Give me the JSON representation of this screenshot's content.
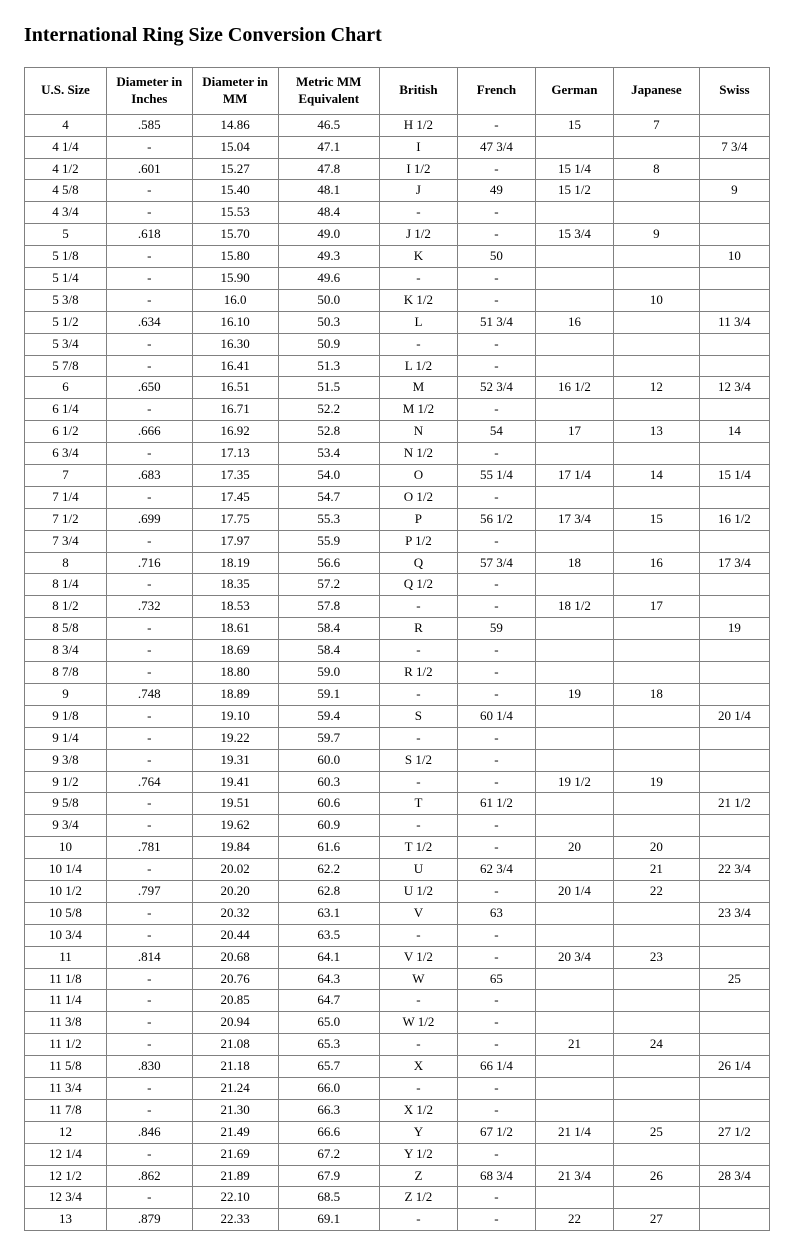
{
  "title": "International Ring Size Conversion Chart",
  "table": {
    "columns": [
      "U.S. Size",
      "Diameter in Inches",
      "Diameter in MM",
      "Metric MM Equivalent",
      "British",
      "French",
      "German",
      "Japanese",
      "Swiss"
    ],
    "rows": [
      [
        "4",
        ".585",
        "14.86",
        "46.5",
        "H 1/2",
        "-",
        "15",
        "7",
        ""
      ],
      [
        "4 1/4",
        "-",
        "15.04",
        "47.1",
        "I",
        "47 3/4",
        "",
        "",
        "7 3/4"
      ],
      [
        "4 1/2",
        ".601",
        "15.27",
        "47.8",
        "I 1/2",
        "-",
        "15 1/4",
        "8",
        ""
      ],
      [
        "4 5/8",
        "-",
        "15.40",
        "48.1",
        "J",
        "49",
        "15 1/2",
        "",
        "9"
      ],
      [
        "4 3/4",
        "-",
        "15.53",
        "48.4",
        "-",
        "-",
        "",
        "",
        ""
      ],
      [
        "5",
        ".618",
        "15.70",
        "49.0",
        "J 1/2",
        "-",
        "15 3/4",
        "9",
        ""
      ],
      [
        "5 1/8",
        "-",
        "15.80",
        "49.3",
        "K",
        "50",
        "",
        "",
        "10"
      ],
      [
        "5 1/4",
        "-",
        "15.90",
        "49.6",
        "-",
        "-",
        "",
        "",
        ""
      ],
      [
        "5 3/8",
        "-",
        "16.0",
        "50.0",
        "K 1/2",
        "-",
        "",
        "10",
        ""
      ],
      [
        "5 1/2",
        ".634",
        "16.10",
        "50.3",
        "L",
        "51 3/4",
        "16",
        "",
        "11 3/4"
      ],
      [
        "5 3/4",
        "-",
        "16.30",
        "50.9",
        "-",
        "-",
        "",
        "",
        ""
      ],
      [
        "5 7/8",
        "-",
        "16.41",
        "51.3",
        "L 1/2",
        "-",
        "",
        "",
        ""
      ],
      [
        "6",
        ".650",
        "16.51",
        "51.5",
        "M",
        "52 3/4",
        "16 1/2",
        "12",
        "12 3/4"
      ],
      [
        "6 1/4",
        "-",
        "16.71",
        "52.2",
        "M 1/2",
        "-",
        "",
        "",
        ""
      ],
      [
        "6 1/2",
        ".666",
        "16.92",
        "52.8",
        "N",
        "54",
        "17",
        "13",
        "14"
      ],
      [
        "6 3/4",
        "-",
        "17.13",
        "53.4",
        "N 1/2",
        "-",
        "",
        "",
        ""
      ],
      [
        "7",
        ".683",
        "17.35",
        "54.0",
        "O",
        "55 1/4",
        "17 1/4",
        "14",
        "15 1/4"
      ],
      [
        "7 1/4",
        "-",
        "17.45",
        "54.7",
        "O 1/2",
        "-",
        "",
        "",
        ""
      ],
      [
        "7 1/2",
        ".699",
        "17.75",
        "55.3",
        "P",
        "56 1/2",
        "17 3/4",
        "15",
        "16 1/2"
      ],
      [
        "7 3/4",
        "-",
        "17.97",
        "55.9",
        "P 1/2",
        "-",
        "",
        "",
        ""
      ],
      [
        "8",
        ".716",
        "18.19",
        "56.6",
        "Q",
        "57 3/4",
        "18",
        "16",
        "17 3/4"
      ],
      [
        "8 1/4",
        "-",
        "18.35",
        "57.2",
        "Q 1/2",
        "-",
        "",
        "",
        ""
      ],
      [
        "8 1/2",
        ".732",
        "18.53",
        "57.8",
        "-",
        "-",
        "18 1/2",
        "17",
        ""
      ],
      [
        "8 5/8",
        "-",
        "18.61",
        "58.4",
        "R",
        "59",
        "",
        "",
        "19"
      ],
      [
        "8 3/4",
        "-",
        "18.69",
        "58.4",
        "-",
        "-",
        "",
        "",
        ""
      ],
      [
        "8 7/8",
        "-",
        "18.80",
        "59.0",
        "R 1/2",
        "-",
        "",
        "",
        ""
      ],
      [
        "9",
        ".748",
        "18.89",
        "59.1",
        "-",
        "-",
        "19",
        "18",
        ""
      ],
      [
        "9 1/8",
        "-",
        "19.10",
        "59.4",
        "S",
        "60 1/4",
        "",
        "",
        "20 1/4"
      ],
      [
        "9 1/4",
        "-",
        "19.22",
        "59.7",
        "-",
        "-",
        "",
        "",
        ""
      ],
      [
        "9 3/8",
        "-",
        "19.31",
        "60.0",
        "S 1/2",
        "-",
        "",
        "",
        ""
      ],
      [
        "9 1/2",
        ".764",
        "19.41",
        "60.3",
        "-",
        "-",
        "19 1/2",
        "19",
        ""
      ],
      [
        "9 5/8",
        "-",
        "19.51",
        "60.6",
        "T",
        "61 1/2",
        "",
        "",
        "21 1/2"
      ],
      [
        "9 3/4",
        "-",
        "19.62",
        "60.9",
        "-",
        "-",
        "",
        "",
        ""
      ],
      [
        "10",
        ".781",
        "19.84",
        "61.6",
        "T 1/2",
        "-",
        "20",
        "20",
        ""
      ],
      [
        "10 1/4",
        "-",
        "20.02",
        "62.2",
        "U",
        "62 3/4",
        "",
        "21",
        "22 3/4"
      ],
      [
        "10 1/2",
        ".797",
        "20.20",
        "62.8",
        "U 1/2",
        "-",
        "20 1/4",
        "22",
        ""
      ],
      [
        "10 5/8",
        "-",
        "20.32",
        "63.1",
        "V",
        "63",
        "",
        "",
        "23 3/4"
      ],
      [
        "10 3/4",
        "-",
        "20.44",
        "63.5",
        "-",
        "-",
        "",
        "",
        ""
      ],
      [
        "11",
        ".814",
        "20.68",
        "64.1",
        "V 1/2",
        "-",
        "20 3/4",
        "23",
        ""
      ],
      [
        "11 1/8",
        "-",
        "20.76",
        "64.3",
        "W",
        "65",
        "",
        "",
        "25"
      ],
      [
        "11 1/4",
        "-",
        "20.85",
        "64.7",
        "-",
        "-",
        "",
        "",
        ""
      ],
      [
        "11 3/8",
        "-",
        "20.94",
        "65.0",
        "W 1/2",
        "-",
        "",
        "",
        ""
      ],
      [
        "11 1/2",
        "-",
        "21.08",
        "65.3",
        "-",
        "-",
        "21",
        "24",
        ""
      ],
      [
        "11 5/8",
        ".830",
        "21.18",
        "65.7",
        "X",
        "66 1/4",
        "",
        "",
        "26 1/4"
      ],
      [
        "11 3/4",
        "-",
        "21.24",
        "66.0",
        "-",
        "-",
        "",
        "",
        ""
      ],
      [
        "11 7/8",
        "-",
        "21.30",
        "66.3",
        "X 1/2",
        "-",
        "",
        "",
        ""
      ],
      [
        "12",
        ".846",
        "21.49",
        "66.6",
        "Y",
        "67 1/2",
        "21 1/4",
        "25",
        "27 1/2"
      ],
      [
        "12 1/4",
        "-",
        "21.69",
        "67.2",
        "Y 1/2",
        "-",
        "",
        "",
        ""
      ],
      [
        "12 1/2",
        ".862",
        "21.89",
        "67.9",
        "Z",
        "68 3/4",
        "21 3/4",
        "26",
        "28 3/4"
      ],
      [
        "12 3/4",
        "-",
        "22.10",
        "68.5",
        "Z 1/2",
        "-",
        "",
        "",
        ""
      ],
      [
        "13",
        ".879",
        "22.33",
        "69.1",
        "-",
        "-",
        "22",
        "27",
        ""
      ]
    ]
  }
}
